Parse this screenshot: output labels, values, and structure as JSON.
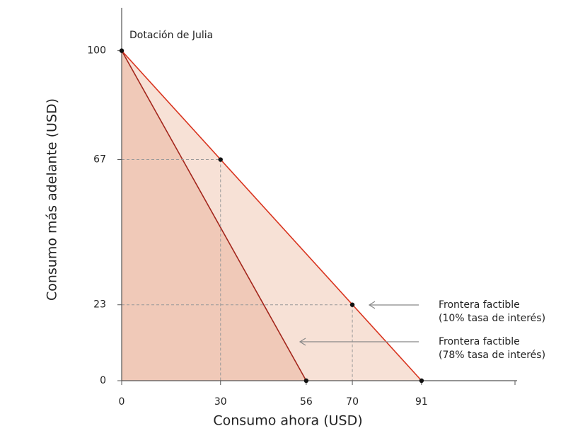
{
  "chart_data": {
    "type": "line",
    "x_label": "Consumo ahora (USD)",
    "y_label": "Consumo más adelante (USD)",
    "annotation": "Dotación de Julia",
    "xlim": [
      0,
      120
    ],
    "ylim": [
      0,
      113
    ],
    "xticks": [
      0,
      30,
      56,
      70,
      91
    ],
    "yticks": [
      0,
      23,
      67,
      100
    ],
    "series": [
      {
        "name_lines": [
          "Frontera factible",
          "(10% tasa de interés)"
        ],
        "color": "#d9341f",
        "fill": "#f7e1d6",
        "x": [
          0,
          91
        ],
        "values": [
          100,
          0
        ]
      },
      {
        "name_lines": [
          "Frontera factible",
          "(78% tasa de interés)"
        ],
        "color": "#a3261c",
        "fill": "#f0c9b8",
        "x": [
          0,
          56
        ],
        "values": [
          100,
          0
        ]
      }
    ],
    "points": {
      "x": [
        0,
        30,
        70,
        56,
        91
      ],
      "values": [
        100,
        67,
        23,
        0,
        0
      ]
    }
  }
}
